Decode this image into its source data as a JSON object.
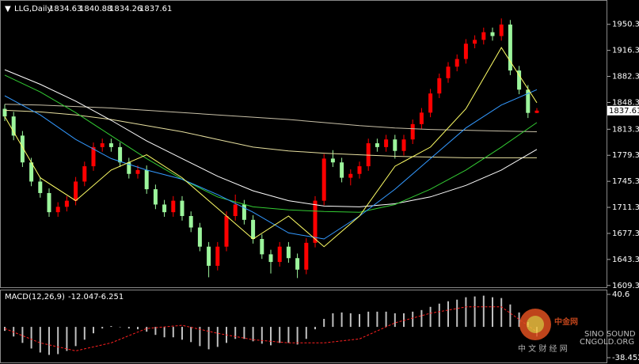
{
  "header": {
    "icon": "▼",
    "symbol": "LLG,Daily",
    "quote": [
      1834.63,
      1840.88,
      1834.26,
      1837.61
    ]
  },
  "chart_data": [
    {
      "type": "candlestick",
      "up_color": "#ff0000",
      "down_color": "#9cf59c",
      "open": [
        1840,
        1830,
        1805,
        1770,
        1745,
        1730,
        1705,
        1712,
        1720,
        1745,
        1765,
        1790,
        1795,
        1790,
        1770,
        1755,
        1760,
        1735,
        1715,
        1705,
        1720,
        1700,
        1685,
        1660,
        1635,
        1660,
        1700,
        1715,
        1695,
        1670,
        1650,
        1640,
        1660,
        1645,
        1630,
        1665,
        1720,
        1775,
        1770,
        1750,
        1755,
        1765,
        1795,
        1790,
        1800,
        1785,
        1800,
        1820,
        1835,
        1860,
        1880,
        1895,
        1905,
        1925,
        1930,
        1940,
        1935,
        1950,
        1890,
        1865,
        1834.63
      ],
      "high": [
        1846,
        1836,
        1811,
        1776,
        1751,
        1736,
        1718,
        1726,
        1751,
        1771,
        1796,
        1801,
        1801,
        1796,
        1776,
        1766,
        1766,
        1741,
        1721,
        1726,
        1726,
        1706,
        1691,
        1666,
        1666,
        1706,
        1728,
        1721,
        1701,
        1676,
        1656,
        1666,
        1666,
        1651,
        1671,
        1726,
        1781,
        1786,
        1776,
        1761,
        1771,
        1801,
        1801,
        1806,
        1806,
        1806,
        1826,
        1841,
        1866,
        1886,
        1901,
        1911,
        1931,
        1936,
        1946,
        1946,
        1958,
        1956,
        1896,
        1871,
        1840.88
      ],
      "low": [
        1824,
        1799,
        1764,
        1739,
        1724,
        1699,
        1699,
        1706,
        1714,
        1739,
        1759,
        1784,
        1784,
        1764,
        1749,
        1749,
        1729,
        1709,
        1699,
        1699,
        1694,
        1679,
        1654,
        1620,
        1629,
        1654,
        1694,
        1689,
        1664,
        1644,
        1625,
        1634,
        1639,
        1619,
        1624,
        1659,
        1714,
        1764,
        1744,
        1740,
        1749,
        1759,
        1784,
        1784,
        1775,
        1779,
        1794,
        1814,
        1829,
        1854,
        1874,
        1889,
        1899,
        1919,
        1924,
        1929,
        1929,
        1884,
        1859,
        1828,
        1834.26
      ],
      "close": [
        1830,
        1805,
        1770,
        1745,
        1730,
        1705,
        1712,
        1720,
        1745,
        1765,
        1790,
        1795,
        1790,
        1770,
        1755,
        1760,
        1735,
        1715,
        1705,
        1720,
        1700,
        1685,
        1660,
        1635,
        1660,
        1700,
        1715,
        1695,
        1670,
        1650,
        1640,
        1660,
        1645,
        1630,
        1665,
        1720,
        1775,
        1770,
        1750,
        1755,
        1765,
        1795,
        1790,
        1800,
        1785,
        1800,
        1820,
        1835,
        1860,
        1880,
        1895,
        1905,
        1925,
        1930,
        1940,
        1935,
        1950,
        1890,
        1865,
        1834.63,
        1837.61
      ],
      "series": [
        {
          "color": "#c8c0a8",
          "x": [
            0,
            4,
            8,
            12,
            16,
            20,
            24,
            28,
            32,
            36,
            40,
            44,
            48,
            52,
            56,
            60
          ],
          "values": [
            1846,
            1845,
            1843,
            1841,
            1838,
            1835,
            1832,
            1829,
            1826,
            1822,
            1818,
            1815,
            1813,
            1812,
            1811,
            1810
          ]
        },
        {
          "color": "#e8e0a0",
          "x": [
            0,
            4,
            8,
            12,
            16,
            20,
            24,
            28,
            32,
            36,
            40,
            44,
            48,
            52,
            56,
            60
          ],
          "values": [
            1838,
            1836,
            1832,
            1826,
            1818,
            1810,
            1800,
            1790,
            1785,
            1782,
            1780,
            1778,
            1777,
            1776,
            1776,
            1776
          ]
        },
        {
          "color": "#ffffff",
          "x": [
            0,
            4,
            8,
            12,
            16,
            20,
            24,
            28,
            32,
            36,
            40,
            44,
            48,
            52,
            56,
            60
          ],
          "values": [
            1891,
            1872,
            1850,
            1825,
            1798,
            1775,
            1752,
            1733,
            1720,
            1713,
            1712,
            1716,
            1725,
            1740,
            1760,
            1787
          ]
        },
        {
          "color": "#33cc33",
          "x": [
            0,
            4,
            8,
            12,
            16,
            20,
            24,
            28,
            32,
            36,
            40,
            44,
            48,
            52,
            56,
            60
          ],
          "values": [
            1884,
            1862,
            1835,
            1805,
            1775,
            1748,
            1725,
            1712,
            1708,
            1706,
            1705,
            1715,
            1735,
            1760,
            1790,
            1822
          ]
        },
        {
          "color": "#3399ff",
          "x": [
            0,
            4,
            8,
            12,
            16,
            20,
            24,
            28,
            32,
            36,
            40,
            44,
            48,
            52,
            56,
            60
          ],
          "values": [
            1857,
            1832,
            1800,
            1775,
            1760,
            1748,
            1728,
            1705,
            1678,
            1670,
            1700,
            1735,
            1775,
            1815,
            1845,
            1865
          ]
        },
        {
          "color": "#ffff66",
          "x": [
            0,
            4,
            8,
            12,
            16,
            20,
            24,
            28,
            32,
            36,
            40,
            44,
            48,
            52,
            56,
            60
          ],
          "values": [
            1830,
            1750,
            1720,
            1760,
            1780,
            1750,
            1710,
            1670,
            1700,
            1660,
            1700,
            1765,
            1790,
            1840,
            1920,
            1848
          ]
        }
      ],
      "ylim": [
        1607,
        1980
      ],
      "yticks": [
        {
          "value": 1950.3,
          "label": "1950.30"
        },
        {
          "value": 1916.3,
          "label": "1916.30"
        },
        {
          "value": 1882.3,
          "label": "1882.30"
        },
        {
          "value": 1848.3,
          "label": "1848.30"
        },
        {
          "value": 1813.3,
          "label": "1813.30"
        },
        {
          "value": 1779.3,
          "label": "1779.30"
        },
        {
          "value": 1745.3,
          "label": "1745.30"
        },
        {
          "value": 1711.3,
          "label": "1711.30"
        },
        {
          "value": 1677.3,
          "label": "1677.30"
        },
        {
          "value": 1643.3,
          "label": "1643.30"
        },
        {
          "value": 1609.3,
          "label": "1609.30"
        }
      ],
      "last_price": {
        "value": 1837.61,
        "label": "1837.61"
      }
    },
    {
      "type": "macd",
      "title": "MACD(12,26,9)",
      "readout": [
        -12.047,
        -6.251
      ],
      "color": "#c0c0c0",
      "signal_color": "#ff2020",
      "values": [
        -5,
        -12,
        -20,
        -27,
        -32,
        -35,
        -34,
        -30,
        -24,
        -16,
        -8,
        -2,
        1,
        0,
        -2,
        -3,
        -6,
        -10,
        -13,
        -13,
        -16,
        -19,
        -24,
        -28,
        -25,
        -20,
        -15,
        -15,
        -18,
        -21,
        -23,
        -20,
        -20,
        -22,
        -15,
        -3,
        10,
        17,
        18,
        17,
        16,
        19,
        19,
        19,
        17,
        17,
        19,
        21,
        25,
        29,
        32,
        34,
        37,
        38,
        39,
        37,
        36,
        28,
        18,
        6,
        -12.047
      ],
      "signal": {
        "x": [
          0,
          4,
          8,
          12,
          16,
          20,
          24,
          28,
          32,
          36,
          40,
          44,
          48,
          52,
          56,
          60
        ],
        "values": [
          -2,
          -20,
          -30,
          -20,
          -2,
          2,
          -8,
          -16,
          -20,
          -20,
          -15,
          5,
          17,
          25,
          25,
          -6.251
        ]
      },
      "ylim": [
        -38.452,
        40.6
      ],
      "yticks": [
        40.6,
        -38.452
      ]
    }
  ],
  "watermark": {
    "logo": "中金网",
    "site": "CNGOLD.ORG",
    "tagline": "中 文 财 经 网",
    "brand": "SINO SOUND"
  }
}
